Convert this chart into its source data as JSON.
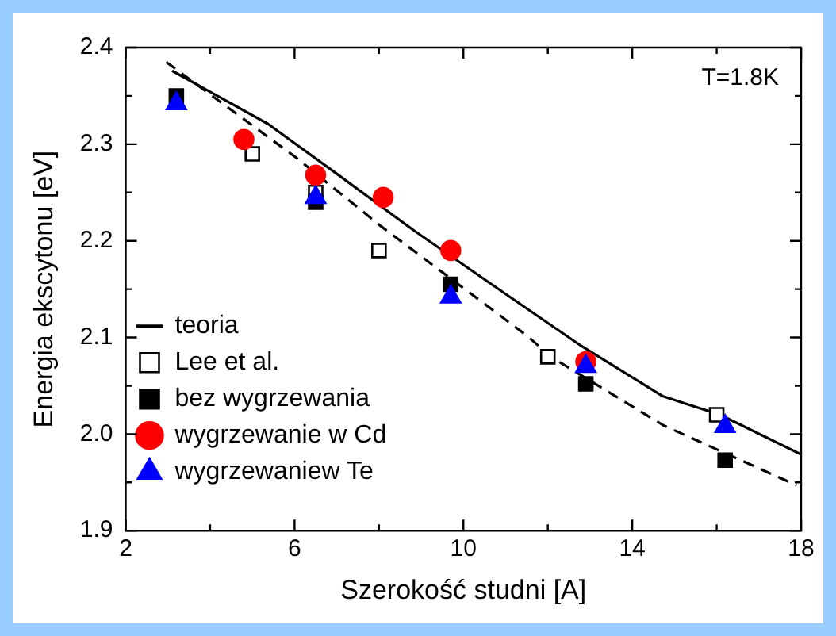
{
  "chart_data": {
    "type": "scatter",
    "xlabel": "Szerokość studni [A]",
    "ylabel": "Energia ekscytonu [eV]",
    "annotations": [
      "T=1.8K"
    ],
    "xlim": [
      2,
      18
    ],
    "xticks": [
      2,
      {
        "value": 4,
        "label": null
      },
      6,
      {
        "value": 8,
        "label": null
      },
      10,
      {
        "value": 12,
        "label": null
      },
      14,
      {
        "value": 16,
        "label": null
      },
      18
    ],
    "ylim": [
      1.9,
      2.4
    ],
    "yticks": [
      {
        "value": 1.9,
        "label": "1.9"
      },
      {
        "value": 1.95,
        "label": null
      },
      {
        "value": 2.0,
        "label": "2.0"
      },
      {
        "value": 2.05,
        "label": null
      },
      {
        "value": 2.1,
        "label": "2.1"
      },
      {
        "value": 2.15,
        "label": null
      },
      {
        "value": 2.2,
        "label": "2.2"
      },
      {
        "value": 2.25,
        "label": null
      },
      {
        "value": 2.3,
        "label": "2.3"
      },
      {
        "value": 2.35,
        "label": null
      },
      {
        "value": 2.4,
        "label": "2.4"
      }
    ],
    "grid": false,
    "legend": "bottom left",
    "series": [
      {
        "name": "teoria",
        "type": "line",
        "line_style": "solid",
        "marker": "none",
        "color": "#000000",
        "x": [
          3.1,
          5.37,
          6.98,
          8.85,
          11.0,
          12.8,
          14.73,
          16.08,
          18.0
        ],
        "values": [
          2.376,
          2.321,
          2.27,
          2.21,
          2.145,
          2.091,
          2.039,
          2.02,
          1.979
        ]
      },
      {
        "type": "line",
        "line_style": "dashed",
        "marker": "none",
        "color": "#000000",
        "x": [
          2.96,
          6.04,
          8.05,
          11.53,
          12.07,
          14.74,
          17.89
        ],
        "values": [
          2.385,
          2.286,
          2.215,
          2.101,
          2.08,
          2.009,
          1.947
        ]
      },
      {
        "name": "Lee et al.",
        "type": "scatter",
        "marker": "square",
        "color": "#ffffff",
        "x": [
          5,
          6.5,
          8,
          12,
          16
        ],
        "values": [
          2.29,
          2.25,
          2.19,
          2.08,
          2.02
        ]
      },
      {
        "name": "bez wygrzewania",
        "type": "scatter",
        "marker": "square",
        "color": "#000000",
        "x": [
          3.2,
          6.5,
          9.7,
          12.9,
          16.2
        ],
        "values": [
          2.35,
          2.24,
          2.155,
          2.052,
          1.973
        ]
      },
      {
        "name": "wygrzewanie w Cd",
        "type": "scatter",
        "marker": "circle",
        "color": "#ff0000",
        "x": [
          4.8,
          6.5,
          8.1,
          9.7,
          12.9
        ],
        "values": [
          2.305,
          2.268,
          2.245,
          2.19,
          2.075
        ]
      },
      {
        "name": "wygrzewaniew Te",
        "type": "scatter",
        "marker": "triangle",
        "color": "#0000ff",
        "x": [
          3.2,
          6.5,
          9.7,
          12.9,
          16.2
        ],
        "values": [
          2.342,
          2.245,
          2.142,
          2.07,
          2.008
        ]
      }
    ]
  }
}
